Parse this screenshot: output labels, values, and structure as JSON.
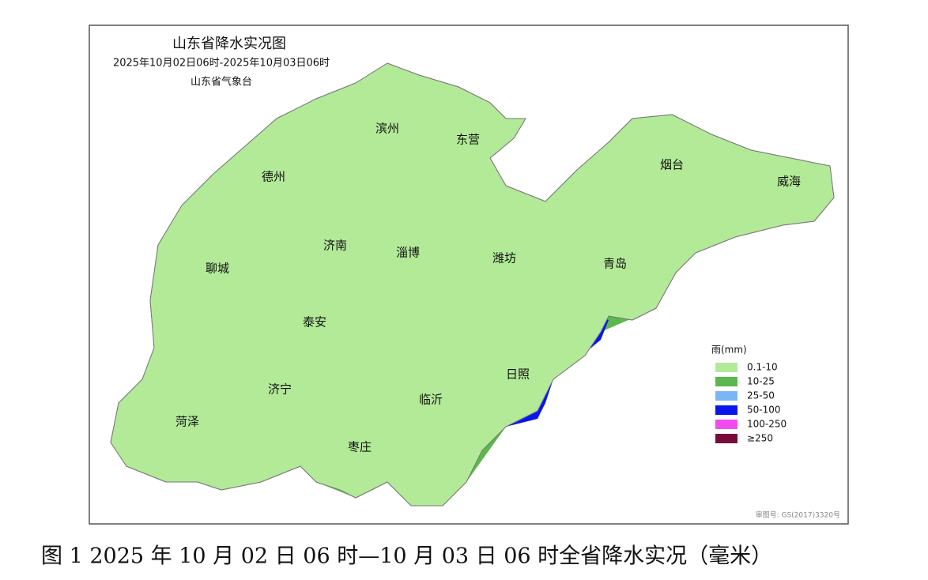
{
  "title": "山东省降水实况图",
  "subtitle": "2025年10月02日06时-2025年10月03日06时",
  "agency": "山东省气象台",
  "cities": [
    "滨州",
    "东营",
    "德州",
    "烟台",
    "威海",
    "聊城",
    "济南",
    "淄博",
    "潍坊",
    "青岛",
    "泰安",
    "日照",
    "济宁",
    "临沂",
    "菏泽",
    "枣庄"
  ],
  "legend": {
    "title": "雨(mm)",
    "items": [
      {
        "label": "0.1-10",
        "color": "#b2ea98"
      },
      {
        "label": "10-25",
        "color": "#5cb84c"
      },
      {
        "label": "25-50",
        "color": "#7ab6f6"
      },
      {
        "label": "50-100",
        "color": "#0a16ee"
      },
      {
        "label": "100-250",
        "color": "#f04cf0"
      },
      {
        "label": "≥250",
        "color": "#780a3c"
      }
    ]
  },
  "approval": "审图号: GS(2017)3320号",
  "caption": "图 1 2025 年 10 月 02 日 06 时—10 月 03 日 06 时全省降水实况（毫米）"
}
